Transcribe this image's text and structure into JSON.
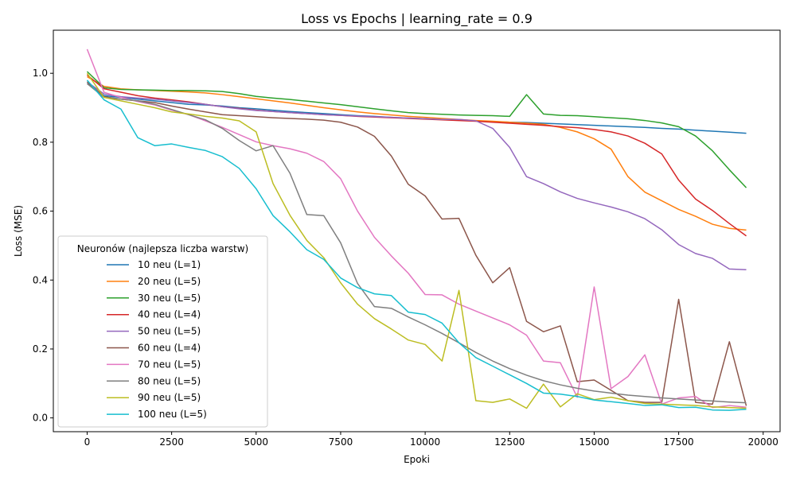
{
  "chart_data": {
    "type": "line",
    "title": "Loss vs Epochs | learning_rate = 0.9",
    "xlabel": "Epoki",
    "ylabel": "Loss (MSE)",
    "xlim": [
      -1000,
      20500
    ],
    "ylim": [
      -0.04,
      1.125
    ],
    "xticks": [
      0,
      2500,
      5000,
      7500,
      10000,
      12500,
      15000,
      17500,
      20000
    ],
    "xtick_labels": [
      "0",
      "2500",
      "5000",
      "7500",
      "10000",
      "12500",
      "15000",
      "17500",
      "20000"
    ],
    "yticks": [
      0.0,
      0.2,
      0.4,
      0.6,
      0.8,
      1.0
    ],
    "ytick_labels": [
      "0.0",
      "0.2",
      "0.4",
      "0.6",
      "0.8",
      "1.0"
    ],
    "grid": false,
    "legend_title": "Neuronów (najlepsza liczba warstw)",
    "legend_position": "lower-left",
    "x": [
      0,
      500,
      1000,
      1500,
      2000,
      2500,
      3000,
      3500,
      4000,
      4500,
      5000,
      5500,
      6000,
      6500,
      7000,
      7500,
      8000,
      8500,
      9000,
      9500,
      10000,
      10500,
      11000,
      11500,
      12000,
      12500,
      13000,
      13500,
      14000,
      14500,
      15000,
      15500,
      16000,
      16500,
      17000,
      17500,
      18000,
      18500,
      19000,
      19500
    ],
    "series": [
      {
        "name": "10 neu (L=1)",
        "color": "#1f77b4",
        "values": [
          0.97,
          0.935,
          0.93,
          0.925,
          0.92,
          0.915,
          0.91,
          0.908,
          0.905,
          0.9,
          0.897,
          0.893,
          0.889,
          0.886,
          0.883,
          0.88,
          0.877,
          0.875,
          0.872,
          0.87,
          0.868,
          0.866,
          0.864,
          0.862,
          0.86,
          0.858,
          0.857,
          0.855,
          0.853,
          0.851,
          0.849,
          0.847,
          0.845,
          0.843,
          0.84,
          0.838,
          0.835,
          0.832,
          0.829,
          0.826
        ]
      },
      {
        "name": "20 neu (L=5)",
        "color": "#ff7f0e",
        "values": [
          0.99,
          0.962,
          0.955,
          0.952,
          0.95,
          0.948,
          0.946,
          0.943,
          0.938,
          0.932,
          0.926,
          0.92,
          0.914,
          0.907,
          0.9,
          0.894,
          0.888,
          0.883,
          0.879,
          0.875,
          0.872,
          0.869,
          0.866,
          0.863,
          0.861,
          0.858,
          0.855,
          0.852,
          0.843,
          0.83,
          0.81,
          0.78,
          0.7,
          0.655,
          0.63,
          0.605,
          0.585,
          0.562,
          0.55,
          0.545
        ]
      },
      {
        "name": "30 neu (L=5)",
        "color": "#2ca02c",
        "values": [
          1.005,
          0.958,
          0.953,
          0.952,
          0.951,
          0.95,
          0.95,
          0.949,
          0.947,
          0.941,
          0.933,
          0.928,
          0.924,
          0.919,
          0.914,
          0.909,
          0.903,
          0.897,
          0.891,
          0.886,
          0.883,
          0.881,
          0.879,
          0.878,
          0.877,
          0.875,
          0.938,
          0.882,
          0.878,
          0.877,
          0.874,
          0.871,
          0.868,
          0.863,
          0.856,
          0.845,
          0.818,
          0.775,
          0.72,
          0.668
        ]
      },
      {
        "name": "40 neu (L=4)",
        "color": "#d62728",
        "values": [
          0.995,
          0.955,
          0.945,
          0.935,
          0.928,
          0.923,
          0.917,
          0.91,
          0.903,
          0.898,
          0.893,
          0.889,
          0.886,
          0.883,
          0.88,
          0.878,
          0.875,
          0.873,
          0.871,
          0.869,
          0.867,
          0.865,
          0.863,
          0.861,
          0.858,
          0.855,
          0.852,
          0.849,
          0.845,
          0.842,
          0.837,
          0.83,
          0.818,
          0.797,
          0.766,
          0.69,
          0.635,
          0.602,
          0.564,
          0.528
        ]
      },
      {
        "name": "50 neu (L=5)",
        "color": "#9467bd",
        "values": [
          0.975,
          0.94,
          0.932,
          0.928,
          0.925,
          0.92,
          0.915,
          0.91,
          0.903,
          0.897,
          0.892,
          0.889,
          0.886,
          0.883,
          0.88,
          0.878,
          0.876,
          0.874,
          0.872,
          0.87,
          0.868,
          0.866,
          0.866,
          0.862,
          0.84,
          0.785,
          0.7,
          0.68,
          0.656,
          0.637,
          0.624,
          0.612,
          0.598,
          0.578,
          0.546,
          0.503,
          0.477,
          0.463,
          0.432,
          0.43
        ]
      },
      {
        "name": "60 neu (L=4)",
        "color": "#8c564b",
        "values": [
          0.975,
          0.932,
          0.925,
          0.92,
          0.915,
          0.905,
          0.896,
          0.888,
          0.88,
          0.877,
          0.874,
          0.871,
          0.869,
          0.867,
          0.864,
          0.858,
          0.844,
          0.817,
          0.76,
          0.678,
          0.644,
          0.577,
          0.579,
          0.472,
          0.392,
          0.436,
          0.28,
          0.25,
          0.267,
          0.105,
          0.11,
          0.08,
          0.05,
          0.045,
          0.045,
          0.344,
          0.045,
          0.04,
          0.221,
          0.035
        ]
      },
      {
        "name": "70 neu (L=5)",
        "color": "#e377c2",
        "values": [
          1.07,
          0.945,
          0.93,
          0.918,
          0.908,
          0.893,
          0.88,
          0.862,
          0.843,
          0.822,
          0.801,
          0.79,
          0.781,
          0.768,
          0.744,
          0.694,
          0.6,
          0.524,
          0.47,
          0.42,
          0.358,
          0.357,
          0.33,
          0.31,
          0.29,
          0.27,
          0.24,
          0.165,
          0.16,
          0.06,
          0.38,
          0.085,
          0.12,
          0.183,
          0.04,
          0.058,
          0.062,
          0.03,
          0.036,
          0.031
        ]
      },
      {
        "name": "80 neu (L=5)",
        "color": "#7f7f7f",
        "values": [
          0.97,
          0.93,
          0.925,
          0.92,
          0.91,
          0.895,
          0.88,
          0.865,
          0.84,
          0.805,
          0.775,
          0.79,
          0.71,
          0.59,
          0.587,
          0.508,
          0.39,
          0.323,
          0.318,
          0.293,
          0.27,
          0.245,
          0.218,
          0.19,
          0.165,
          0.143,
          0.124,
          0.108,
          0.096,
          0.086,
          0.078,
          0.072,
          0.066,
          0.062,
          0.058,
          0.055,
          0.052,
          0.049,
          0.046,
          0.044
        ]
      },
      {
        "name": "90 neu (L=5)",
        "color": "#bcbd22",
        "values": [
          1.0,
          0.93,
          0.92,
          0.91,
          0.9,
          0.888,
          0.882,
          0.875,
          0.87,
          0.862,
          0.83,
          0.68,
          0.588,
          0.515,
          0.465,
          0.392,
          0.33,
          0.288,
          0.258,
          0.226,
          0.213,
          0.165,
          0.37,
          0.05,
          0.045,
          0.055,
          0.028,
          0.098,
          0.032,
          0.07,
          0.053,
          0.06,
          0.05,
          0.042,
          0.04,
          0.038,
          0.036,
          0.032,
          0.03,
          0.028
        ]
      },
      {
        "name": "100 neu (L=5)",
        "color": "#17becf",
        "values": [
          0.98,
          0.923,
          0.896,
          0.813,
          0.79,
          0.795,
          0.785,
          0.776,
          0.758,
          0.724,
          0.665,
          0.587,
          0.54,
          0.488,
          0.46,
          0.406,
          0.378,
          0.36,
          0.355,
          0.307,
          0.3,
          0.275,
          0.218,
          0.175,
          0.15,
          0.125,
          0.1,
          0.072,
          0.069,
          0.062,
          0.052,
          0.047,
          0.042,
          0.036,
          0.038,
          0.03,
          0.031,
          0.023,
          0.022,
          0.025
        ]
      }
    ]
  }
}
